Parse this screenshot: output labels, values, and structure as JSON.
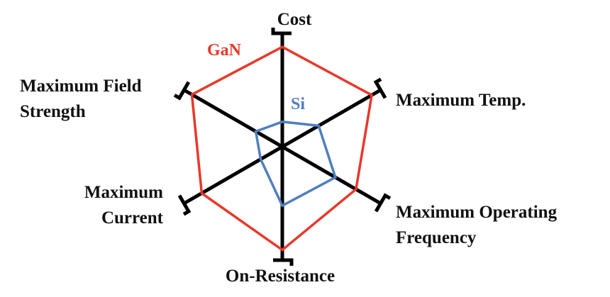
{
  "chart_data": {
    "type": "radar",
    "categories": [
      "Cost",
      "Maximum Temp.",
      "Maximum Operating Frequency",
      "On-Resistance",
      "Maximum Current",
      "Maximum Field Strength"
    ],
    "ylim": [
      0,
      1
    ],
    "series": [
      {
        "name": "GaN",
        "color": "#e8382a",
        "values": [
          0.88,
          0.91,
          0.75,
          0.91,
          0.82,
          0.92
        ]
      },
      {
        "name": "Si",
        "color": "#4f7fbf",
        "values": [
          0.22,
          0.37,
          0.54,
          0.52,
          0.22,
          0.27
        ]
      }
    ]
  }
}
